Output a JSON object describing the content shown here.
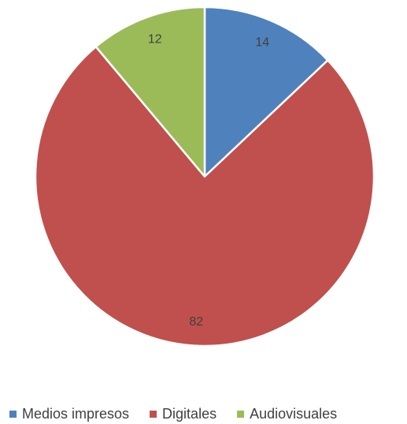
{
  "chart_data": {
    "type": "pie",
    "title": "",
    "categories": [
      "Medios impresos",
      "Digitales",
      "Audiovisuales"
    ],
    "values": [
      14,
      82,
      12
    ],
    "colors": [
      "#4F81BD",
      "#C0504D",
      "#9BBB59"
    ],
    "data_labels": [
      "14",
      "82",
      "12"
    ],
    "legend": {
      "placement": "bottom",
      "entries": [
        "Medios impresos",
        "Digitales",
        "Audiovisuales"
      ]
    }
  }
}
